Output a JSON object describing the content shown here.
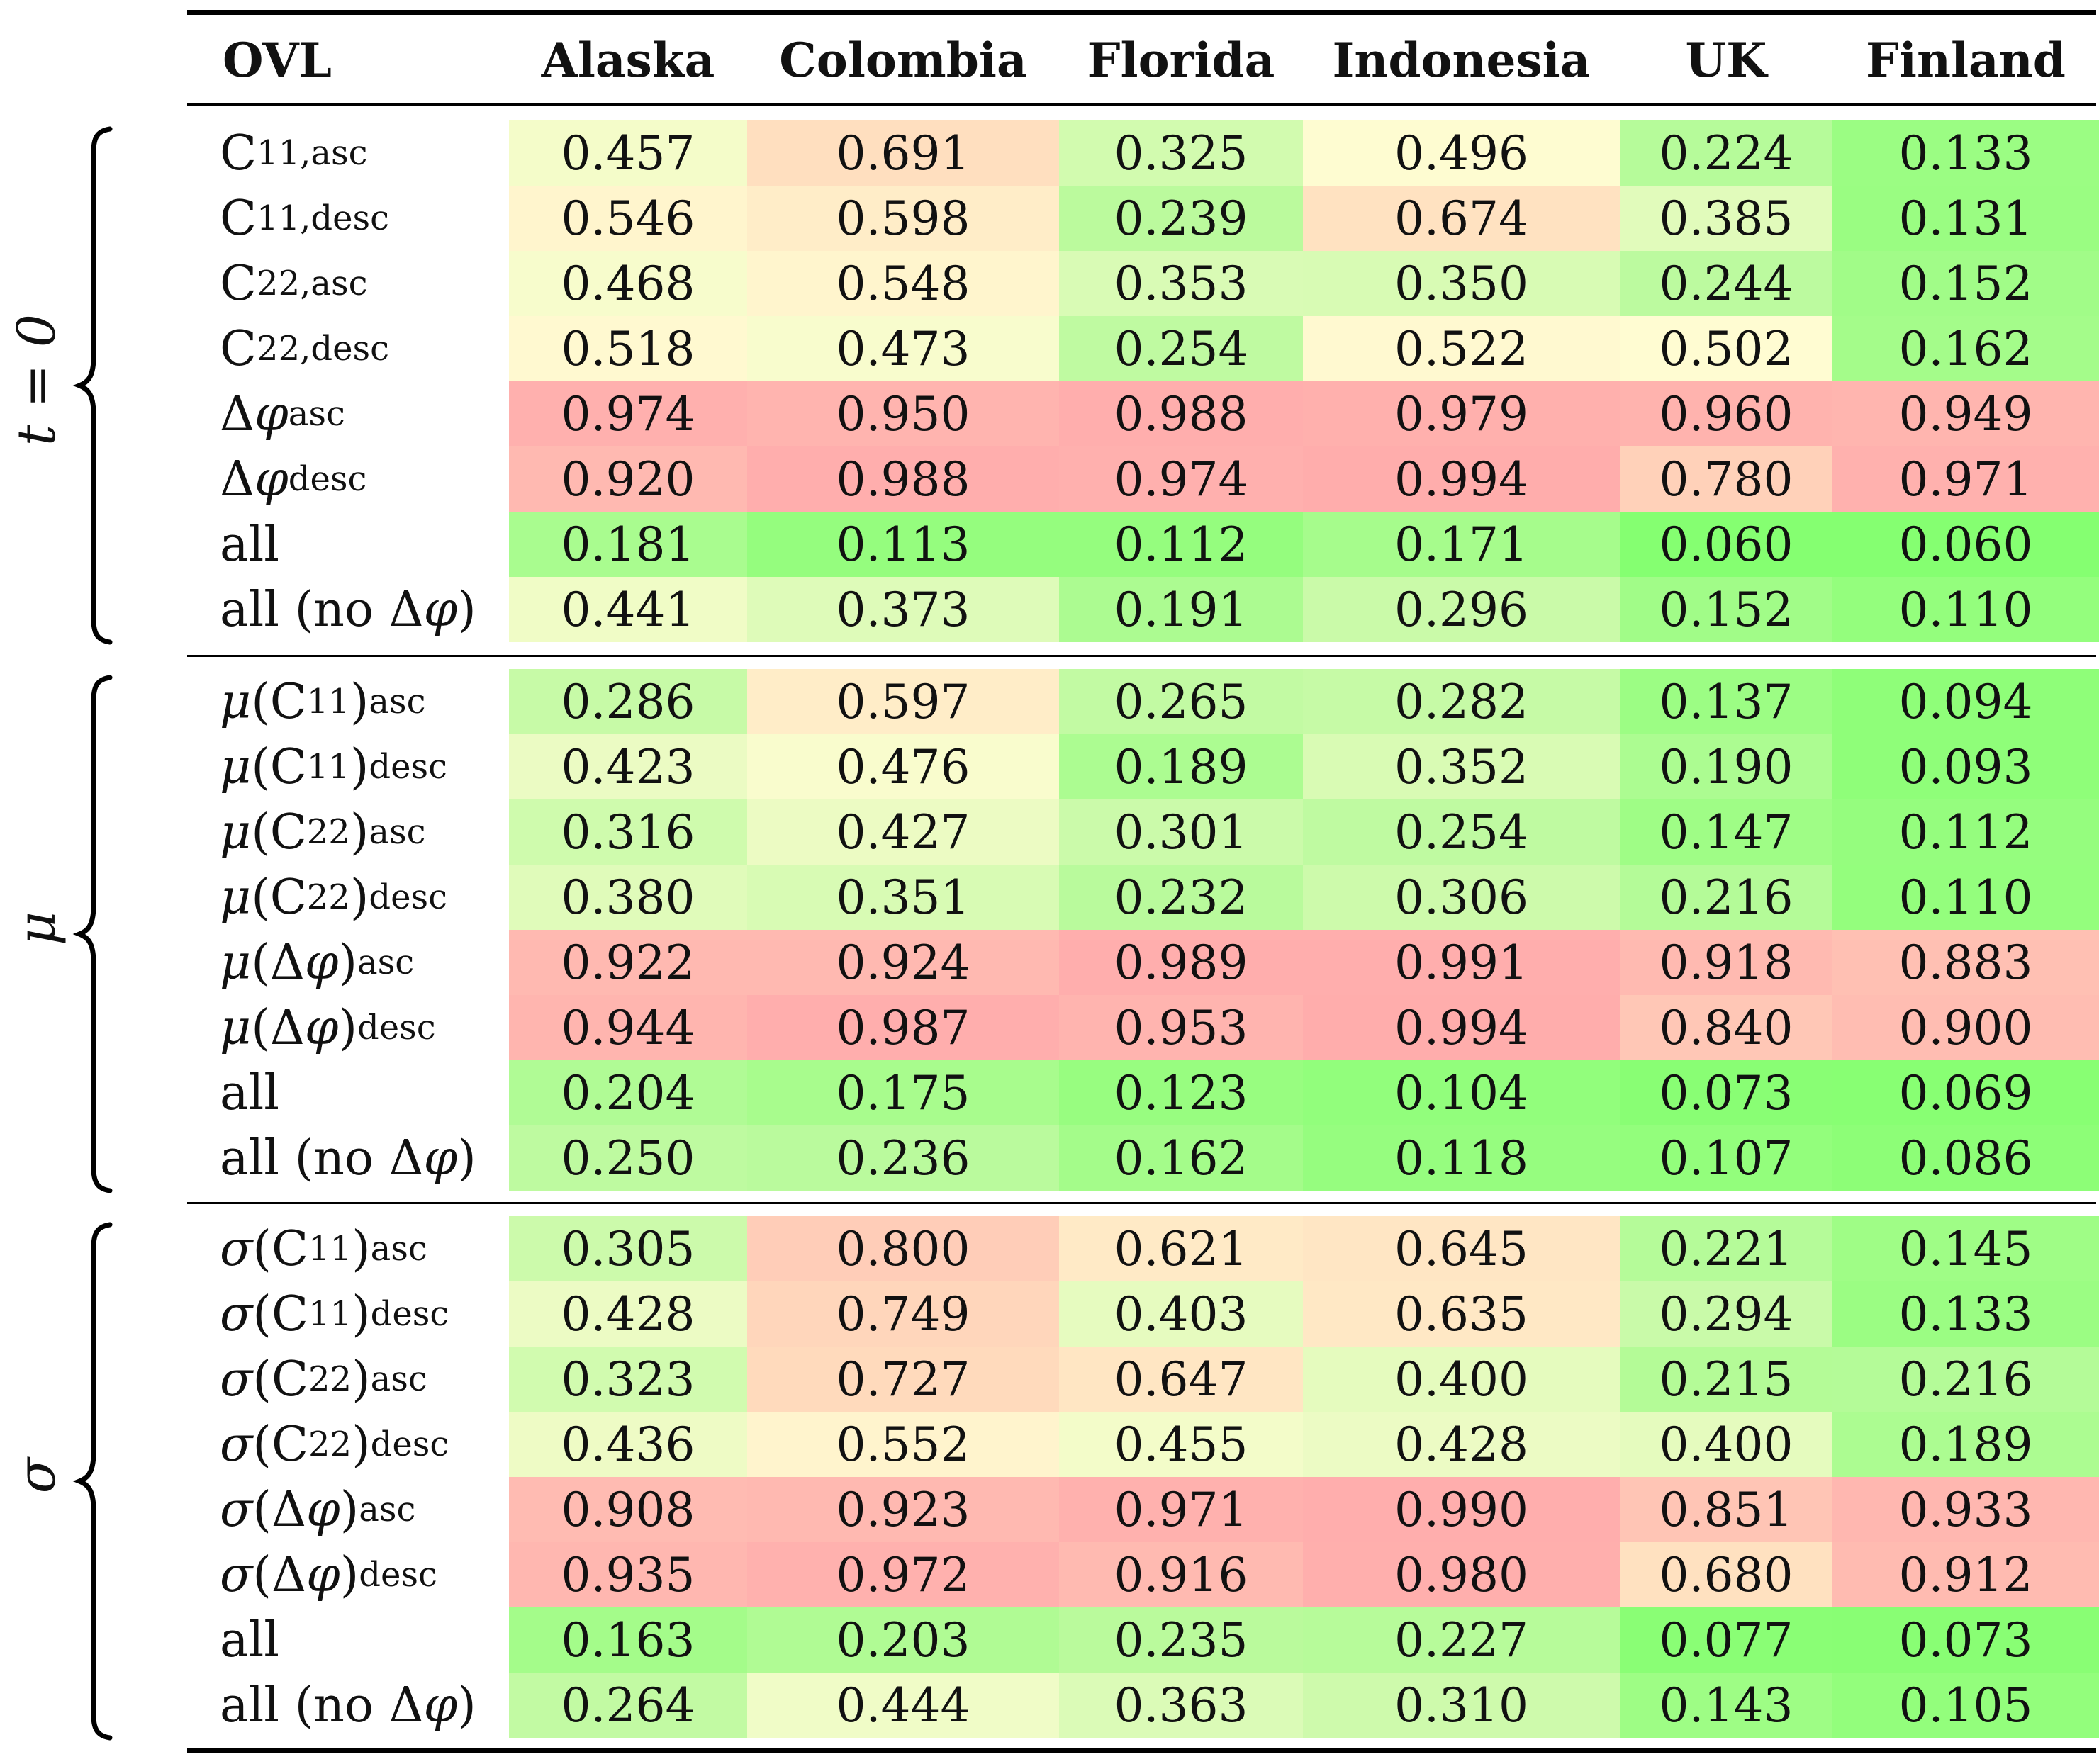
{
  "header": {
    "corner": "OVL",
    "columns": [
      "Alaska",
      "Colombia",
      "Florida",
      "Indonesia",
      "UK",
      "Finland"
    ]
  },
  "groups": [
    {
      "label": "t = 0",
      "rows": [
        {
          "label": "C11,asc",
          "values": [
            "0.457",
            "0.691",
            "0.325",
            "0.496",
            "0.224",
            "0.133"
          ]
        },
        {
          "label": "C11,desc",
          "values": [
            "0.546",
            "0.598",
            "0.239",
            "0.674",
            "0.385",
            "0.131"
          ]
        },
        {
          "label": "C22,asc",
          "values": [
            "0.468",
            "0.548",
            "0.353",
            "0.350",
            "0.244",
            "0.152"
          ]
        },
        {
          "label": "C22,desc",
          "values": [
            "0.518",
            "0.473",
            "0.254",
            "0.522",
            "0.502",
            "0.162"
          ]
        },
        {
          "label": "Δφasc",
          "values": [
            "0.974",
            "0.950",
            "0.988",
            "0.979",
            "0.960",
            "0.949"
          ]
        },
        {
          "label": "Δφdesc",
          "values": [
            "0.920",
            "0.988",
            "0.974",
            "0.994",
            "0.780",
            "0.971"
          ]
        },
        {
          "label": "all",
          "values": [
            "0.181",
            "0.113",
            "0.112",
            "0.171",
            "0.060",
            "0.060"
          ]
        },
        {
          "label": "all (no Δφ)",
          "values": [
            "0.441",
            "0.373",
            "0.191",
            "0.296",
            "0.152",
            "0.110"
          ]
        }
      ]
    },
    {
      "label": "μ",
      "rows": [
        {
          "label": "μ(C11)asc",
          "values": [
            "0.286",
            "0.597",
            "0.265",
            "0.282",
            "0.137",
            "0.094"
          ]
        },
        {
          "label": "μ(C11)desc",
          "values": [
            "0.423",
            "0.476",
            "0.189",
            "0.352",
            "0.190",
            "0.093"
          ]
        },
        {
          "label": "μ(C22)asc",
          "values": [
            "0.316",
            "0.427",
            "0.301",
            "0.254",
            "0.147",
            "0.112"
          ]
        },
        {
          "label": "μ(C22)desc",
          "values": [
            "0.380",
            "0.351",
            "0.232",
            "0.306",
            "0.216",
            "0.110"
          ]
        },
        {
          "label": "μ(Δφ)asc",
          "values": [
            "0.922",
            "0.924",
            "0.989",
            "0.991",
            "0.918",
            "0.883"
          ]
        },
        {
          "label": "μ(Δφ)desc",
          "values": [
            "0.944",
            "0.987",
            "0.953",
            "0.994",
            "0.840",
            "0.900"
          ]
        },
        {
          "label": "all",
          "values": [
            "0.204",
            "0.175",
            "0.123",
            "0.104",
            "0.073",
            "0.069"
          ]
        },
        {
          "label": "all (no Δφ)",
          "values": [
            "0.250",
            "0.236",
            "0.162",
            "0.118",
            "0.107",
            "0.086"
          ]
        }
      ]
    },
    {
      "label": "σ",
      "rows": [
        {
          "label": "σ(C11)asc",
          "values": [
            "0.305",
            "0.800",
            "0.621",
            "0.645",
            "0.221",
            "0.145"
          ]
        },
        {
          "label": "σ(C11)desc",
          "values": [
            "0.428",
            "0.749",
            "0.403",
            "0.635",
            "0.294",
            "0.133"
          ]
        },
        {
          "label": "σ(C22)asc",
          "values": [
            "0.323",
            "0.727",
            "0.647",
            "0.400",
            "0.215",
            "0.216"
          ]
        },
        {
          "label": "σ(C22)desc",
          "values": [
            "0.436",
            "0.552",
            "0.455",
            "0.428",
            "0.400",
            "0.189"
          ]
        },
        {
          "label": "σ(Δφ)asc",
          "values": [
            "0.908",
            "0.923",
            "0.971",
            "0.990",
            "0.851",
            "0.933"
          ]
        },
        {
          "label": "σ(Δφ)desc",
          "values": [
            "0.935",
            "0.972",
            "0.916",
            "0.980",
            "0.680",
            "0.912"
          ]
        },
        {
          "label": "all",
          "values": [
            "0.163",
            "0.203",
            "0.235",
            "0.227",
            "0.077",
            "0.073"
          ]
        },
        {
          "label": "all (no Δφ)",
          "values": [
            "0.264",
            "0.444",
            "0.363",
            "0.310",
            "0.143",
            "0.105"
          ]
        }
      ]
    }
  ]
}
